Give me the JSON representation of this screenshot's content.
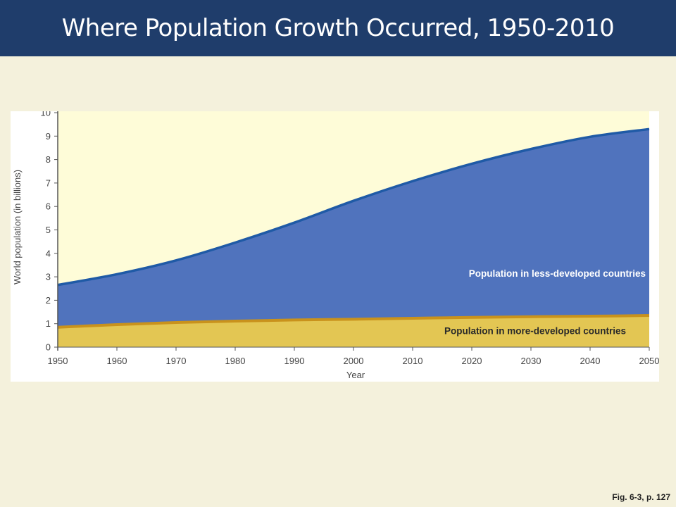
{
  "slide": {
    "title": "Where Population Growth Occurred, 1950-2010",
    "footer": "Fig. 6-3, p. 127"
  },
  "colors": {
    "title_bar": "#1f3d6b",
    "background": "#f4f1dc",
    "plot_background": "#fefcd8",
    "less_developed_fill": "#5073bd",
    "less_developed_line": "#1f5aa6",
    "more_developed_fill": "#e3c653",
    "more_developed_line": "#c9921c",
    "less_label": "#ffffff",
    "more_label": "#2a2a2a"
  },
  "chart_data": {
    "type": "area",
    "stacked": true,
    "title": "",
    "xlabel": "Year",
    "ylabel": "World population (in billions)",
    "xlim": [
      1950,
      2050
    ],
    "ylim": [
      0,
      10
    ],
    "x_ticks": [
      1950,
      1960,
      1970,
      1980,
      1990,
      2000,
      2010,
      2020,
      2030,
      2040,
      2050
    ],
    "y_ticks": [
      0,
      1,
      2,
      3,
      4,
      5,
      6,
      7,
      8,
      9,
      10
    ],
    "x": [
      1950,
      1960,
      1970,
      1980,
      1990,
      2000,
      2010,
      2020,
      2030,
      2040,
      2050
    ],
    "series": [
      {
        "name": "Population in more-developed countries",
        "values": [
          0.85,
          0.96,
          1.05,
          1.11,
          1.16,
          1.19,
          1.23,
          1.27,
          1.3,
          1.32,
          1.35
        ]
      },
      {
        "name": "Population in less-developed countries",
        "values": [
          1.8,
          2.15,
          2.65,
          3.35,
          4.15,
          5.05,
          5.85,
          6.55,
          7.15,
          7.65,
          7.95
        ]
      }
    ],
    "grid": false,
    "legend": "inline labels inside areas"
  }
}
